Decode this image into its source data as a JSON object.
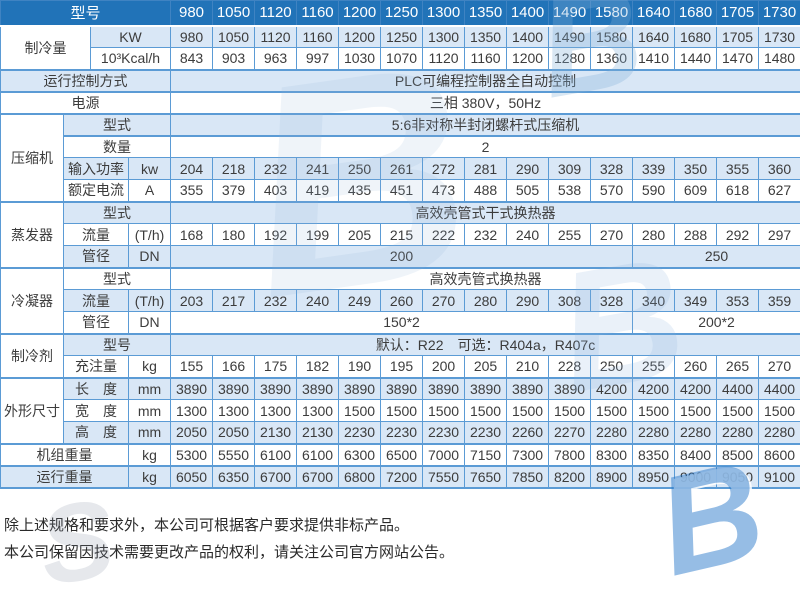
{
  "table": {
    "rows": [
      {
        "name": "models-header",
        "kind": "head",
        "lead": [
          {
            "t": "型号",
            "c": 4
          }
        ],
        "values": [
          "980",
          "1050",
          "1120",
          "1160",
          "1200",
          "1250",
          "1300",
          "1350",
          "1400",
          "1490",
          "1580",
          "1640",
          "1680",
          "1705",
          "1730"
        ]
      },
      {
        "name": "cooling-kw",
        "lead": [
          {
            "t": "制冷量",
            "c": 2,
            "r": 2,
            "k": "grp"
          },
          {
            "t": "KW",
            "c": 2
          }
        ],
        "values": [
          "980",
          "1050",
          "1120",
          "1160",
          "1200",
          "1250",
          "1300",
          "1350",
          "1400",
          "1490",
          "1580",
          "1640",
          "1680",
          "1705",
          "1730"
        ]
      },
      {
        "name": "cooling-kcal",
        "lead": [
          {
            "t": "10³Kcal/h",
            "c": 2
          }
        ],
        "values": [
          "843",
          "903",
          "963",
          "997",
          "1030",
          "1070",
          "1120",
          "1160",
          "1200",
          "1280",
          "1360",
          "1410",
          "1440",
          "1470",
          "1480"
        ]
      },
      {
        "name": "control-mode",
        "lead": [
          {
            "t": "运行控制方式",
            "c": 4
          }
        ],
        "spans": [
          {
            "t": "PLC可编程控制器全自动控制",
            "c": 15
          }
        ]
      },
      {
        "name": "power-supply",
        "lead": [
          {
            "t": "电源",
            "c": 4
          }
        ],
        "spans": [
          {
            "t": "三相 380V，50Hz",
            "c": 15
          }
        ]
      },
      {
        "name": "compressor-type",
        "lead": [
          {
            "t": "压缩机",
            "c": 1,
            "r": 4,
            "k": "grp"
          },
          {
            "t": "型式",
            "c": 3
          }
        ],
        "spans": [
          {
            "t": "5:6非对称半封闭螺杆式压缩机",
            "c": 15
          }
        ]
      },
      {
        "name": "compressor-qty",
        "lead": [
          {
            "t": "数量",
            "c": 3
          }
        ],
        "spans": [
          {
            "t": "2",
            "c": 15
          }
        ]
      },
      {
        "name": "compressor-input-power",
        "lead": [
          {
            "t": "输入功率",
            "c": 2
          },
          {
            "t": "kw",
            "c": 1
          }
        ],
        "values": [
          "204",
          "218",
          "232",
          "241",
          "250",
          "261",
          "272",
          "281",
          "290",
          "309",
          "328",
          "339",
          "350",
          "355",
          "360"
        ]
      },
      {
        "name": "compressor-rated-current",
        "lead": [
          {
            "t": "额定电流",
            "c": 2
          },
          {
            "t": "A",
            "c": 1
          }
        ],
        "values": [
          "355",
          "379",
          "403",
          "419",
          "435",
          "451",
          "473",
          "488",
          "505",
          "538",
          "570",
          "590",
          "609",
          "618",
          "627"
        ]
      },
      {
        "name": "evaporator-type",
        "lead": [
          {
            "t": "蒸发器",
            "c": 1,
            "r": 3,
            "k": "grp"
          },
          {
            "t": "型式",
            "c": 3
          }
        ],
        "spans": [
          {
            "t": "高效壳管式干式换热器",
            "c": 15
          }
        ]
      },
      {
        "name": "evaporator-flow",
        "lead": [
          {
            "t": "流量",
            "c": 2
          },
          {
            "t": "(T/h)",
            "c": 1
          }
        ],
        "values": [
          "168",
          "180",
          "192",
          "199",
          "205",
          "215",
          "222",
          "232",
          "240",
          "255",
          "270",
          "280",
          "288",
          "292",
          "297"
        ]
      },
      {
        "name": "evaporator-pipe",
        "lead": [
          {
            "t": "管径",
            "c": 2
          },
          {
            "t": "DN",
            "c": 1
          }
        ],
        "spans": [
          {
            "t": "200",
            "c": 11
          },
          {
            "t": "250",
            "c": 4
          }
        ]
      },
      {
        "name": "condenser-type",
        "lead": [
          {
            "t": "冷凝器",
            "c": 1,
            "r": 3,
            "k": "grp"
          },
          {
            "t": "型式",
            "c": 3
          }
        ],
        "spans": [
          {
            "t": "高效壳管式换热器",
            "c": 15
          }
        ]
      },
      {
        "name": "condenser-flow",
        "lead": [
          {
            "t": "流量",
            "c": 2
          },
          {
            "t": "(T/h)",
            "c": 1
          }
        ],
        "values": [
          "203",
          "217",
          "232",
          "240",
          "249",
          "260",
          "270",
          "280",
          "290",
          "308",
          "328",
          "340",
          "349",
          "353",
          "359"
        ]
      },
      {
        "name": "condenser-pipe",
        "lead": [
          {
            "t": "管径",
            "c": 2
          },
          {
            "t": "DN",
            "c": 1
          }
        ],
        "spans": [
          {
            "t": "150*2",
            "c": 11
          },
          {
            "t": "200*2",
            "c": 4
          }
        ]
      },
      {
        "name": "refrigerant-model",
        "lead": [
          {
            "t": "制冷剂",
            "c": 1,
            "r": 2,
            "k": "grp"
          },
          {
            "t": "型号",
            "c": 3
          }
        ],
        "spans": [
          {
            "t": "默认：R22　可选：R404a，R407c",
            "c": 15
          }
        ]
      },
      {
        "name": "refrigerant-charge",
        "lead": [
          {
            "t": "充注量",
            "c": 2
          },
          {
            "t": "kg",
            "c": 1
          }
        ],
        "values": [
          "155",
          "166",
          "175",
          "182",
          "190",
          "195",
          "200",
          "205",
          "210",
          "228",
          "250",
          "255",
          "260",
          "265",
          "270"
        ]
      },
      {
        "name": "dimension-length",
        "lead": [
          {
            "t": "外形尺寸",
            "c": 1,
            "r": 3,
            "k": "grp"
          },
          {
            "t": "长　度",
            "c": 2
          },
          {
            "t": "mm",
            "c": 1
          }
        ],
        "values": [
          "3890",
          "3890",
          "3890",
          "3890",
          "3890",
          "3890",
          "3890",
          "3890",
          "3890",
          "3890",
          "4200",
          "4200",
          "4200",
          "4400",
          "4400"
        ]
      },
      {
        "name": "dimension-width",
        "lead": [
          {
            "t": "宽　度",
            "c": 2
          },
          {
            "t": "mm",
            "c": 1
          }
        ],
        "values": [
          "1300",
          "1300",
          "1300",
          "1300",
          "1500",
          "1500",
          "1500",
          "1500",
          "1500",
          "1500",
          "1500",
          "1500",
          "1500",
          "1500",
          "1500"
        ]
      },
      {
        "name": "dimension-height",
        "lead": [
          {
            "t": "高　度",
            "c": 2
          },
          {
            "t": "mm",
            "c": 1
          }
        ],
        "values": [
          "2050",
          "2050",
          "2130",
          "2130",
          "2230",
          "2230",
          "2230",
          "2230",
          "2260",
          "2270",
          "2280",
          "2280",
          "2280",
          "2280",
          "2280"
        ]
      },
      {
        "name": "unit-weight",
        "lead": [
          {
            "t": "机组重量",
            "c": 3
          },
          {
            "t": "kg",
            "c": 1
          }
        ],
        "values": [
          "5300",
          "5550",
          "6100",
          "6100",
          "6300",
          "6500",
          "7000",
          "7150",
          "7300",
          "7800",
          "8300",
          "8350",
          "8400",
          "8500",
          "8600"
        ]
      },
      {
        "name": "running-weight",
        "lead": [
          {
            "t": "运行重量",
            "c": 3
          },
          {
            "t": "kg",
            "c": 1
          }
        ],
        "values": [
          "6050",
          "6350",
          "6700",
          "6700",
          "6800",
          "7200",
          "7550",
          "7650",
          "7850",
          "8200",
          "8900",
          "8950",
          "9000",
          "9050",
          "9100"
        ]
      }
    ]
  },
  "footer": {
    "line1": "除上述规格和要求外，本公司可根据客户要求提供非标产品。",
    "line2": "本公司保留因技术需要更改产品的权利，请关注公司官方网站公告。"
  },
  "watermark": {
    "glyph_b": "B",
    "glyph_s": "S"
  },
  "colors": {
    "header_blue": "#2173b8",
    "row_light_blue": "#d9e7f6",
    "border_blue": "#5b9bd5",
    "text_dark": "#3c3c3c"
  }
}
